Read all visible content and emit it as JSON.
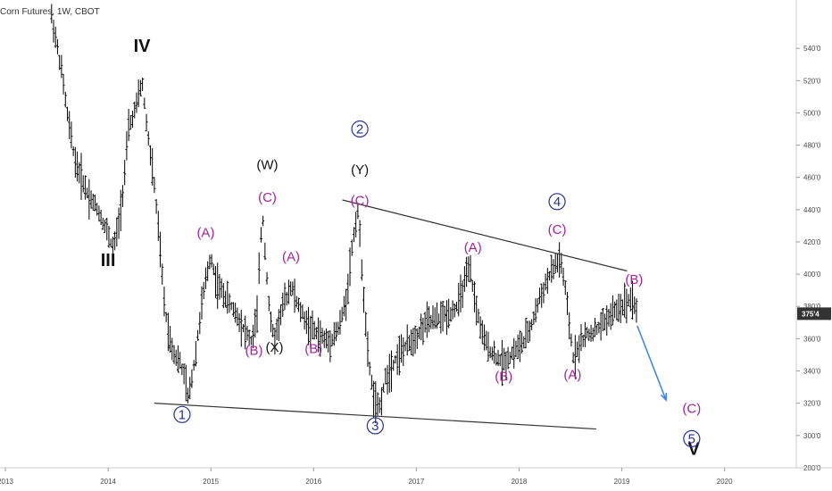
{
  "chart_data": {
    "type": "ohlc",
    "title": "Corn Futures, 1W, CBOT",
    "ylim": [
      270,
      560
    ],
    "xlim": [
      2013.0,
      2020.75
    ],
    "y_ticks": [
      280,
      300,
      320,
      340,
      360,
      380,
      400,
      420,
      440,
      460,
      480,
      500,
      520,
      540
    ],
    "y_tick_labels": [
      "280'0",
      "300'0",
      "320'0",
      "340'0",
      "360'0",
      "380'0",
      "400'0",
      "420'0",
      "440'0",
      "460'0",
      "480'0",
      "500'0",
      "520'0",
      "540'0"
    ],
    "x_ticks": [
      2013,
      2014,
      2015,
      2016,
      2017,
      2018,
      2019,
      2020
    ],
    "x_tick_labels": [
      "2013",
      "2014",
      "2015",
      "2016",
      "2017",
      "2018",
      "2019",
      "2020"
    ],
    "last_price": 375.5,
    "last_price_label": "375'4",
    "price_path": [
      [
        2013.45,
        560
      ],
      [
        2013.55,
        525
      ],
      [
        2013.6,
        500
      ],
      [
        2013.68,
        470
      ],
      [
        2013.8,
        450
      ],
      [
        2013.9,
        440
      ],
      [
        2014.0,
        425
      ],
      [
        2014.05,
        415
      ],
      [
        2014.1,
        430
      ],
      [
        2014.15,
        455
      ],
      [
        2014.2,
        490
      ],
      [
        2014.28,
        505
      ],
      [
        2014.33,
        520
      ],
      [
        2014.38,
        490
      ],
      [
        2014.45,
        455
      ],
      [
        2014.5,
        420
      ],
      [
        2014.55,
        380
      ],
      [
        2014.6,
        360
      ],
      [
        2014.65,
        350
      ],
      [
        2014.7,
        345
      ],
      [
        2014.75,
        335
      ],
      [
        2014.78,
        322
      ],
      [
        2014.85,
        350
      ],
      [
        2014.92,
        385
      ],
      [
        2015.0,
        412
      ],
      [
        2015.05,
        395
      ],
      [
        2015.15,
        385
      ],
      [
        2015.25,
        375
      ],
      [
        2015.33,
        365
      ],
      [
        2015.4,
        358
      ],
      [
        2015.45,
        375
      ],
      [
        2015.5,
        440
      ],
      [
        2015.55,
        395
      ],
      [
        2015.58,
        370
      ],
      [
        2015.62,
        360
      ],
      [
        2015.7,
        380
      ],
      [
        2015.78,
        393
      ],
      [
        2015.85,
        380
      ],
      [
        2015.95,
        368
      ],
      [
        2016.05,
        362
      ],
      [
        2016.15,
        358
      ],
      [
        2016.25,
        367
      ],
      [
        2016.32,
        385
      ],
      [
        2016.38,
        420
      ],
      [
        2016.43,
        440
      ],
      [
        2016.48,
        395
      ],
      [
        2016.52,
        355
      ],
      [
        2016.58,
        325
      ],
      [
        2016.63,
        315
      ],
      [
        2016.7,
        335
      ],
      [
        2016.8,
        348
      ],
      [
        2016.9,
        355
      ],
      [
        2017.0,
        362
      ],
      [
        2017.1,
        370
      ],
      [
        2017.2,
        372
      ],
      [
        2017.3,
        375
      ],
      [
        2017.4,
        380
      ],
      [
        2017.47,
        395
      ],
      [
        2017.52,
        403
      ],
      [
        2017.58,
        380
      ],
      [
        2017.65,
        360
      ],
      [
        2017.75,
        350
      ],
      [
        2017.85,
        345
      ],
      [
        2017.95,
        352
      ],
      [
        2018.05,
        358
      ],
      [
        2018.12,
        368
      ],
      [
        2018.2,
        385
      ],
      [
        2018.28,
        397
      ],
      [
        2018.35,
        405
      ],
      [
        2018.4,
        410
      ],
      [
        2018.45,
        390
      ],
      [
        2018.5,
        362
      ],
      [
        2018.53,
        347
      ],
      [
        2018.58,
        356
      ],
      [
        2018.65,
        362
      ],
      [
        2018.75,
        365
      ],
      [
        2018.85,
        372
      ],
      [
        2018.95,
        378
      ],
      [
        2019.03,
        382
      ],
      [
        2019.1,
        386
      ],
      [
        2019.15,
        376
      ]
    ],
    "trendlines": [
      {
        "from": [
          2014.45,
          320
        ],
        "to": [
          2018.75,
          304
        ]
      },
      {
        "from": [
          2016.28,
          446
        ],
        "to": [
          2019.05,
          402
        ]
      }
    ],
    "projection": {
      "from": [
        2019.15,
        368
      ],
      "to": [
        2019.43,
        322
      ]
    },
    "annotations": [
      {
        "text": "IV",
        "x": 2014.33,
        "y": 538,
        "style": "big"
      },
      {
        "text": "III",
        "x": 2014.0,
        "y": 405,
        "style": "big"
      },
      {
        "text": "V",
        "x": 2019.7,
        "y": 288,
        "style": "big"
      },
      {
        "text": "(W)",
        "x": 2015.55,
        "y": 465,
        "style": "black"
      },
      {
        "text": "(Y)",
        "x": 2016.45,
        "y": 462,
        "style": "black"
      },
      {
        "text": "(X)",
        "x": 2015.62,
        "y": 352,
        "style": "black"
      },
      {
        "text": "(A)",
        "x": 2014.95,
        "y": 423,
        "style": "magenta"
      },
      {
        "text": "(C)",
        "x": 2015.55,
        "y": 445,
        "style": "magenta"
      },
      {
        "text": "(A)",
        "x": 2015.78,
        "y": 408,
        "style": "magenta"
      },
      {
        "text": "(B)",
        "x": 2015.42,
        "y": 350,
        "style": "magenta"
      },
      {
        "text": "(B)",
        "x": 2016.0,
        "y": 351,
        "style": "magenta"
      },
      {
        "text": "(C)",
        "x": 2016.45,
        "y": 443,
        "style": "magenta"
      },
      {
        "text": "(A)",
        "x": 2017.55,
        "y": 414,
        "style": "magenta"
      },
      {
        "text": "(B)",
        "x": 2017.85,
        "y": 334,
        "style": "magenta"
      },
      {
        "text": "(C)",
        "x": 2018.37,
        "y": 425,
        "style": "magenta"
      },
      {
        "text": "(A)",
        "x": 2018.52,
        "y": 335,
        "style": "magenta"
      },
      {
        "text": "(B)",
        "x": 2019.12,
        "y": 394,
        "style": "magenta"
      },
      {
        "text": "(C)",
        "x": 2019.68,
        "y": 314,
        "style": "magenta"
      }
    ],
    "wave_circles": [
      {
        "text": "1",
        "x": 2014.72,
        "y": 313
      },
      {
        "text": "2",
        "x": 2016.45,
        "y": 490
      },
      {
        "text": "3",
        "x": 2016.6,
        "y": 306
      },
      {
        "text": "4",
        "x": 2018.37,
        "y": 445
      },
      {
        "text": "5",
        "x": 2019.68,
        "y": 298
      }
    ],
    "colors": {
      "bars": "#000000",
      "trendline": "#333333",
      "projection": "#3d7ff5",
      "magenta": "#a91f9e",
      "circle": "#27309a"
    }
  }
}
